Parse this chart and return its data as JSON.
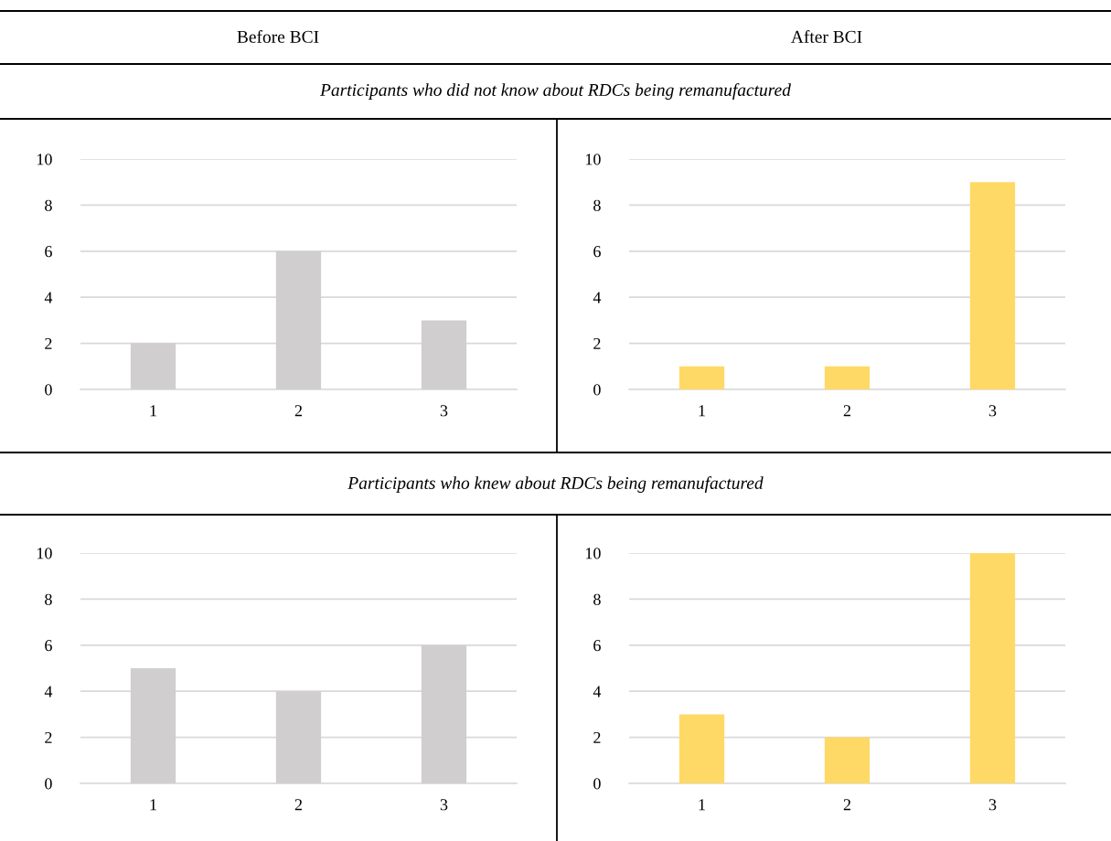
{
  "chart_data": [
    {
      "type": "bar",
      "annotations": [
        "Before BCI",
        "Participants who did not know about RDCs being remanufactured"
      ],
      "categories": [
        "1",
        "2",
        "3"
      ],
      "values": [
        2,
        6,
        3
      ],
      "color": "#d0cece",
      "ylim": [
        0,
        10
      ],
      "yticks": [
        0,
        2,
        4,
        6,
        8,
        10
      ],
      "grid": "y"
    },
    {
      "type": "bar",
      "annotations": [
        "After BCI"
      ],
      "categories": [
        "1",
        "2",
        "3"
      ],
      "values": [
        1,
        1,
        9
      ],
      "color": "#ffd966",
      "ylim": [
        0,
        10
      ],
      "yticks": [
        0,
        2,
        4,
        6,
        8,
        10
      ],
      "grid": "y"
    },
    {
      "type": "bar",
      "annotations": [
        "Participants who knew about RDCs being remanufactured"
      ],
      "categories": [
        "1",
        "2",
        "3"
      ],
      "values": [
        5,
        4,
        6
      ],
      "color": "#d0cece",
      "ylim": [
        0,
        10
      ],
      "yticks": [
        0,
        2,
        4,
        6,
        8,
        10
      ],
      "grid": "y"
    },
    {
      "type": "bar",
      "categories": [
        "1",
        "2",
        "3"
      ],
      "values": [
        3,
        2,
        10
      ],
      "color": "#ffd966",
      "ylim": [
        0,
        10
      ],
      "yticks": [
        0,
        2,
        4,
        6,
        8,
        10
      ],
      "grid": "y"
    }
  ]
}
